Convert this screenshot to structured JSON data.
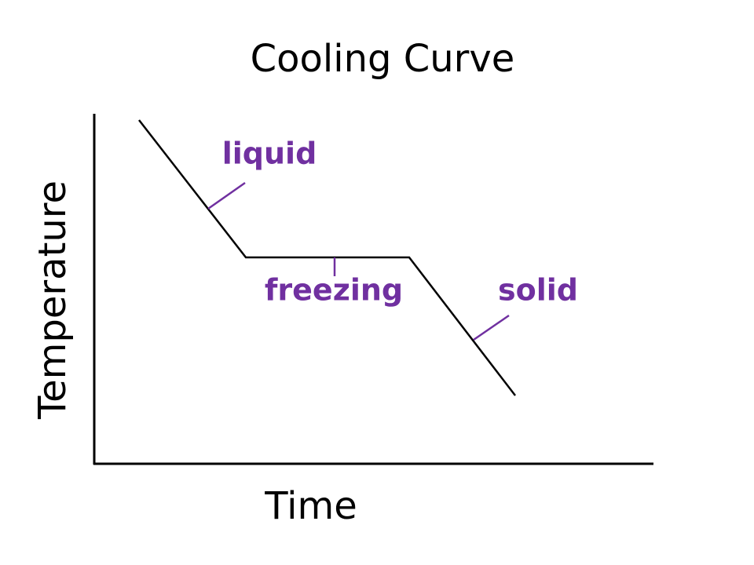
{
  "title": "Cooling Curve",
  "axes": {
    "x_label": "Time",
    "y_label": "Temperature"
  },
  "annotations": [
    {
      "label": "liquid"
    },
    {
      "label": "freezing"
    },
    {
      "label": "solid"
    }
  ]
}
